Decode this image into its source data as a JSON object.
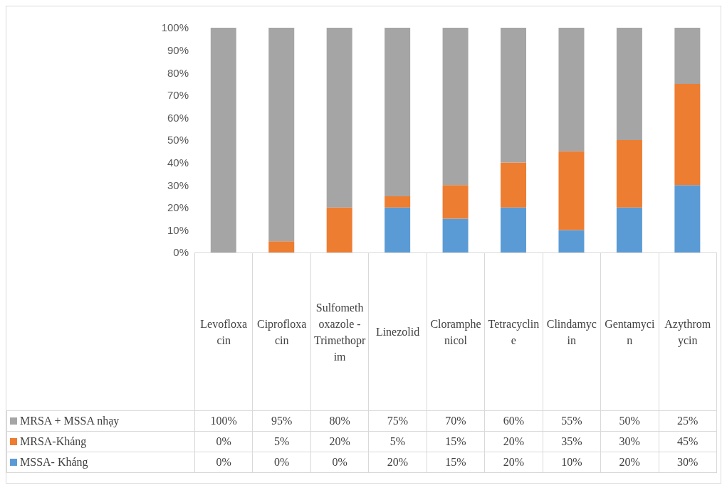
{
  "chart_data": {
    "type": "bar",
    "stacked": true,
    "categories": [
      "Levofloxacin",
      "Ciprofloxacin",
      "Sulfomethoxazole - Trimethoprim",
      "Linezolid",
      "Cloramphenicol",
      "Tetracycline",
      "Clindamycin",
      "Gentamycin",
      "Azythromycin"
    ],
    "series": [
      {
        "name": "MSSA- Kháng",
        "color": "#5b9bd5",
        "values": [
          0,
          0,
          0,
          20,
          15,
          20,
          10,
          20,
          30
        ],
        "value_labels": [
          "0%",
          "0%",
          "0%",
          "20%",
          "15%",
          "20%",
          "10%",
          "20%",
          "30%"
        ]
      },
      {
        "name": "MRSA-Kháng",
        "color": "#ed7d31",
        "values": [
          0,
          5,
          20,
          5,
          15,
          20,
          35,
          30,
          45
        ],
        "value_labels": [
          "0%",
          "5%",
          "20%",
          "5%",
          "15%",
          "20%",
          "35%",
          "30%",
          "45%"
        ]
      },
      {
        "name": "MRSA + MSSA nhạy",
        "color": "#a5a5a5",
        "values": [
          100,
          95,
          80,
          75,
          70,
          60,
          55,
          50,
          25
        ],
        "value_labels": [
          "100%",
          "95%",
          "80%",
          "75%",
          "70%",
          "60%",
          "55%",
          "50%",
          "25%"
        ]
      }
    ],
    "ylim": [
      0,
      100
    ],
    "yticks": [
      {
        "value": 0,
        "label": "0%"
      },
      {
        "value": 10,
        "label": "10%"
      },
      {
        "value": 20,
        "label": "20%"
      },
      {
        "value": 30,
        "label": "30%"
      },
      {
        "value": 40,
        "label": "40%"
      },
      {
        "value": 50,
        "label": "50%"
      },
      {
        "value": 60,
        "label": "60%"
      },
      {
        "value": 70,
        "label": "70%"
      },
      {
        "value": 80,
        "label": "80%"
      },
      {
        "value": 90,
        "label": "90%"
      },
      {
        "value": 100,
        "label": "100%"
      }
    ],
    "grid": false,
    "legend": "bottom"
  }
}
